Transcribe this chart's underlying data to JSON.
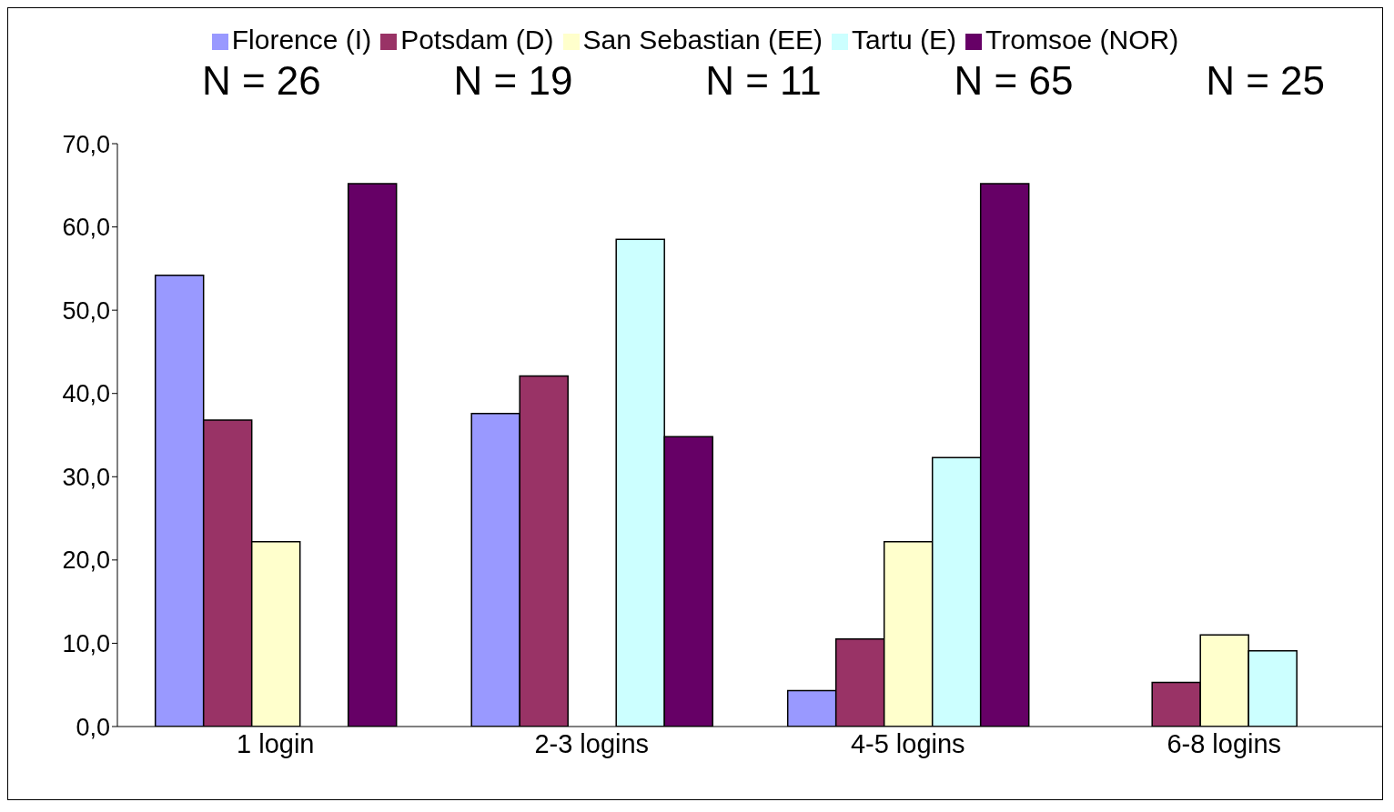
{
  "chart_data": {
    "type": "bar",
    "categories": [
      "1 login",
      "2-3 logins",
      "4-5 logins",
      "6-8 logins"
    ],
    "series": [
      {
        "name": "Florence (I)",
        "color": "#9999ff",
        "values": [
          54.2,
          37.6,
          4.3,
          null
        ]
      },
      {
        "name": "Potsdam (D)",
        "color": "#993366",
        "values": [
          36.8,
          42.1,
          10.5,
          5.3
        ]
      },
      {
        "name": "San Sebastian (EE)",
        "color": "#ffffcc",
        "values": [
          22.2,
          null,
          22.2,
          11.0
        ]
      },
      {
        "name": "Tartu (E)",
        "color": "#ccffff",
        "values": [
          null,
          58.5,
          32.3,
          9.1
        ]
      },
      {
        "name": "Tromsoe (NOR)",
        "color": "#660066",
        "values": [
          65.2,
          34.8,
          65.2,
          null
        ]
      }
    ],
    "ylim": [
      0,
      70
    ],
    "yticks": [
      {
        "value": 0,
        "label": "0,0"
      },
      {
        "value": 10,
        "label": "10,0"
      },
      {
        "value": 20,
        "label": "20,0"
      },
      {
        "value": 30,
        "label": "30,0"
      },
      {
        "value": 40,
        "label": "40,0"
      },
      {
        "value": 50,
        "label": "50,0"
      },
      {
        "value": 60,
        "label": "60,0"
      },
      {
        "value": 70,
        "label": "70,0"
      }
    ],
    "annotations": [
      "N = 26",
      "N = 19",
      "N = 11",
      "N = 65",
      "N = 25"
    ],
    "legend": "top",
    "grid": false
  }
}
